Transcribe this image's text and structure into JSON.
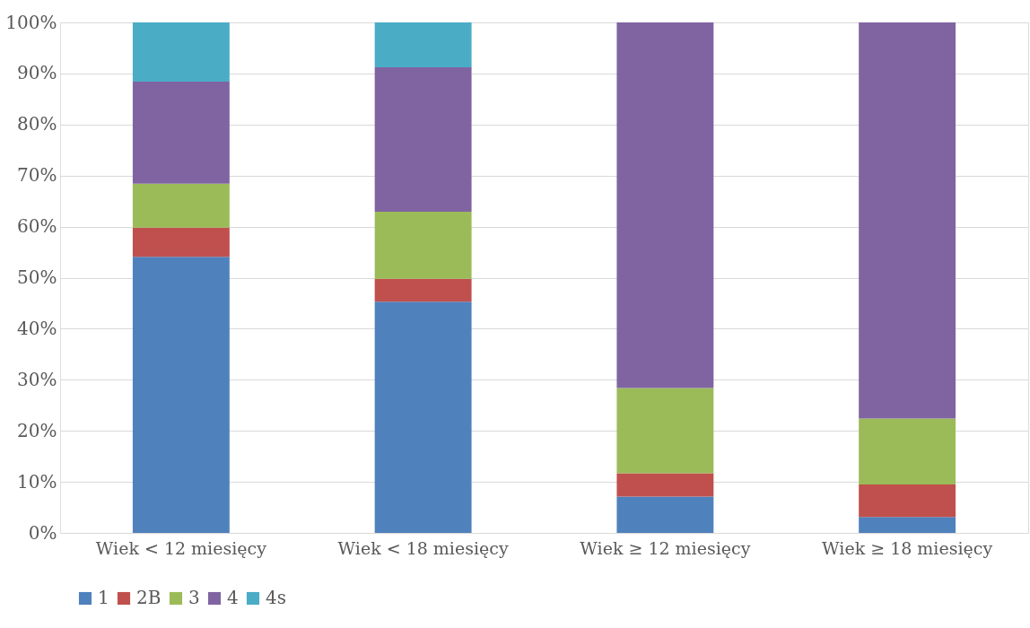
{
  "chart_data": {
    "type": "bar",
    "stacked": true,
    "categories": [
      "Wiek < 12 miesięcy",
      "Wiek  < 18 miesięcy",
      "Wiek ≥ 12 miesięcy",
      "Wiek ≥ 18 miesięcy"
    ],
    "series": [
      {
        "name": "1",
        "color": "#4f81bd",
        "values": [
          54.1,
          45.3,
          7.1,
          3.1
        ]
      },
      {
        "name": "2B",
        "color": "#c0504d",
        "values": [
          5.7,
          4.5,
          4.6,
          6.4
        ]
      },
      {
        "name": "3",
        "color": "#9bbb59",
        "values": [
          8.6,
          13.1,
          16.7,
          12.9
        ]
      },
      {
        "name": "4",
        "color": "#8064a2",
        "values": [
          20.0,
          28.3,
          71.6,
          77.6
        ]
      },
      {
        "name": "4s",
        "color": "#4bacc6",
        "values": [
          11.6,
          8.8,
          null,
          null
        ]
      }
    ],
    "ylim": [
      0,
      100
    ],
    "yticks": [
      {
        "value": 0,
        "label": "0%"
      },
      {
        "value": 10,
        "label": "10%"
      },
      {
        "value": 20,
        "label": "20%"
      },
      {
        "value": 30,
        "label": "30%"
      },
      {
        "value": 40,
        "label": "40%"
      },
      {
        "value": 50,
        "label": "50%"
      },
      {
        "value": 60,
        "label": "60%"
      },
      {
        "value": 70,
        "label": "70%"
      },
      {
        "value": 80,
        "label": "80%"
      },
      {
        "value": 90,
        "label": "90%"
      },
      {
        "value": 100,
        "label": "100%"
      }
    ],
    "grid": "y",
    "legend": "bottom"
  }
}
